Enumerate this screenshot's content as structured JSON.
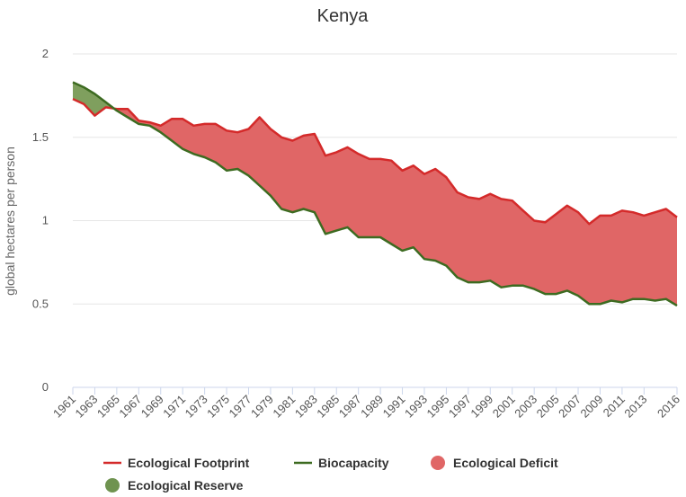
{
  "chart_data": {
    "type": "area",
    "title": "Kenya",
    "ylabel": "global hectares per person",
    "xlabel": "",
    "ylim": [
      0,
      2
    ],
    "yticks": [
      0,
      0.5,
      1,
      1.5,
      2
    ],
    "ytick_labels": [
      "0",
      "0.5",
      "1",
      "1.5",
      "2"
    ],
    "xtick_labels": [
      "1961",
      "1963",
      "1965",
      "1967",
      "1969",
      "1971",
      "1973",
      "1975",
      "1977",
      "1979",
      "1981",
      "1983",
      "1985",
      "1987",
      "1989",
      "1991",
      "1993",
      "1995",
      "1997",
      "1999",
      "2001",
      "2003",
      "2005",
      "2007",
      "2009",
      "2011",
      "2013",
      "2016"
    ],
    "x": [
      1961,
      1962,
      1963,
      1964,
      1965,
      1966,
      1967,
      1968,
      1969,
      1970,
      1971,
      1972,
      1973,
      1974,
      1975,
      1976,
      1977,
      1978,
      1979,
      1980,
      1981,
      1982,
      1983,
      1984,
      1985,
      1986,
      1987,
      1988,
      1989,
      1990,
      1991,
      1992,
      1993,
      1994,
      1995,
      1996,
      1997,
      1998,
      1999,
      2000,
      2001,
      2002,
      2003,
      2004,
      2005,
      2006,
      2007,
      2008,
      2009,
      2010,
      2011,
      2012,
      2013,
      2014,
      2015,
      2016
    ],
    "series": [
      {
        "name": "Ecological Footprint",
        "color": "#d42a2a",
        "values": [
          1.73,
          1.7,
          1.63,
          1.68,
          1.67,
          1.67,
          1.6,
          1.59,
          1.57,
          1.61,
          1.61,
          1.57,
          1.58,
          1.58,
          1.54,
          1.53,
          1.55,
          1.62,
          1.55,
          1.5,
          1.48,
          1.51,
          1.52,
          1.39,
          1.41,
          1.44,
          1.4,
          1.37,
          1.37,
          1.36,
          1.3,
          1.33,
          1.28,
          1.31,
          1.26,
          1.17,
          1.14,
          1.13,
          1.16,
          1.13,
          1.12,
          1.06,
          1.0,
          0.99,
          1.04,
          1.09,
          1.05,
          0.98,
          1.03,
          1.03,
          1.06,
          1.05,
          1.03,
          1.05,
          1.07,
          1.02
        ]
      },
      {
        "name": "Biocapacity",
        "color": "#3d6b21",
        "values": [
          1.83,
          1.8,
          1.76,
          1.71,
          1.66,
          1.62,
          1.58,
          1.57,
          1.53,
          1.48,
          1.43,
          1.4,
          1.38,
          1.35,
          1.3,
          1.31,
          1.27,
          1.21,
          1.15,
          1.07,
          1.05,
          1.07,
          1.05,
          0.92,
          0.94,
          0.96,
          0.9,
          0.9,
          0.9,
          0.86,
          0.82,
          0.84,
          0.77,
          0.76,
          0.73,
          0.66,
          0.63,
          0.63,
          0.64,
          0.6,
          0.61,
          0.61,
          0.59,
          0.56,
          0.56,
          0.58,
          0.55,
          0.5,
          0.5,
          0.52,
          0.51,
          0.53,
          0.53,
          0.52,
          0.53,
          0.49
        ]
      }
    ],
    "fills": [
      {
        "name": "Ecological Deficit",
        "color": "#e06666"
      },
      {
        "name": "Ecological Reserve",
        "color": "#7f9f5e"
      }
    ],
    "legend": {
      "position": "bottom",
      "items": [
        {
          "label": "Ecological Footprint",
          "kind": "line",
          "color": "#d42a2a"
        },
        {
          "label": "Biocapacity",
          "kind": "line",
          "color": "#3d6b21"
        },
        {
          "label": "Ecological Deficit",
          "kind": "dot",
          "color": "#e06666"
        },
        {
          "label": "Ecological Reserve",
          "kind": "dot",
          "color": "#6f9350"
        }
      ]
    }
  }
}
